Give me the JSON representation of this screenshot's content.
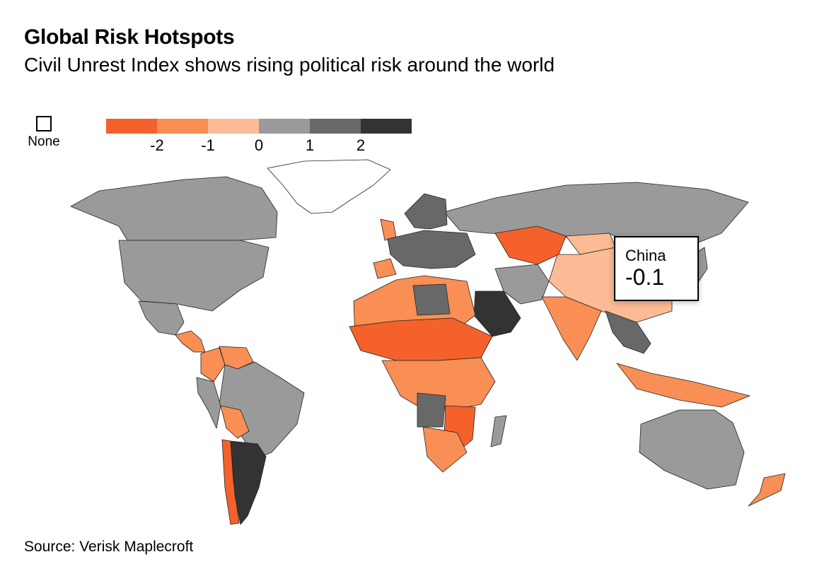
{
  "header": {
    "title": "Global Risk Hotspots",
    "subtitle": "Civil Unrest Index shows rising political risk around the world"
  },
  "legend": {
    "none_label": "None",
    "colors": [
      "#f4612a",
      "#f98f55",
      "#fcbb95",
      "#9a9a9a",
      "#686868",
      "#333333"
    ],
    "ticks": [
      "-2",
      "-1",
      "0",
      "1",
      "2"
    ]
  },
  "tooltip": {
    "country": "China",
    "value": "-0.1"
  },
  "source": "Source: Verisk Maplecroft",
  "map": {
    "none_color": "#ffffff",
    "regions": [
      {
        "name": "Greenland",
        "value": null
      },
      {
        "name": "Canada",
        "value": 0.8
      },
      {
        "name": "United States",
        "value": 0.8
      },
      {
        "name": "Mexico",
        "value": 0.8
      },
      {
        "name": "Central America",
        "value": -1.5
      },
      {
        "name": "Colombia",
        "value": -1.2
      },
      {
        "name": "Venezuela",
        "value": -1.5
      },
      {
        "name": "Brazil",
        "value": 0.8
      },
      {
        "name": "Peru",
        "value": 0.8
      },
      {
        "name": "Bolivia",
        "value": -1.2
      },
      {
        "name": "Chile",
        "value": -2.1
      },
      {
        "name": "Argentina",
        "value": 2.3
      },
      {
        "name": "Russia",
        "value": 0.8
      },
      {
        "name": "Scandinavia",
        "value": 1.2
      },
      {
        "name": "United Kingdom",
        "value": -1.5
      },
      {
        "name": "Western Europe",
        "value": 1.5
      },
      {
        "name": "Iberia",
        "value": -1.2
      },
      {
        "name": "Kazakhstan",
        "value": -2.2
      },
      {
        "name": "China",
        "value": -0.1
      },
      {
        "name": "Mongolia",
        "value": 0.3
      },
      {
        "name": "Saudi Arabia",
        "value": 2.4
      },
      {
        "name": "Iran",
        "value": 0.8
      },
      {
        "name": "India",
        "value": -0.8
      },
      {
        "name": "Southeast Asia",
        "value": 1.2
      },
      {
        "name": "Indonesia",
        "value": -0.8
      },
      {
        "name": "Australia",
        "value": 0.8
      },
      {
        "name": "New Zealand",
        "value": -1.5
      },
      {
        "name": "Japan",
        "value": 0.8
      },
      {
        "name": "North Africa",
        "value": -0.6
      },
      {
        "name": "Libya",
        "value": 1.4
      },
      {
        "name": "Sahel",
        "value": -2.0
      },
      {
        "name": "Central Africa",
        "value": -0.6
      },
      {
        "name": "Angola",
        "value": 1.4
      },
      {
        "name": "Zambia/Zimbabwe",
        "value": -2.0
      },
      {
        "name": "South Africa",
        "value": -0.6
      },
      {
        "name": "Madagascar",
        "value": 0.8
      }
    ]
  }
}
